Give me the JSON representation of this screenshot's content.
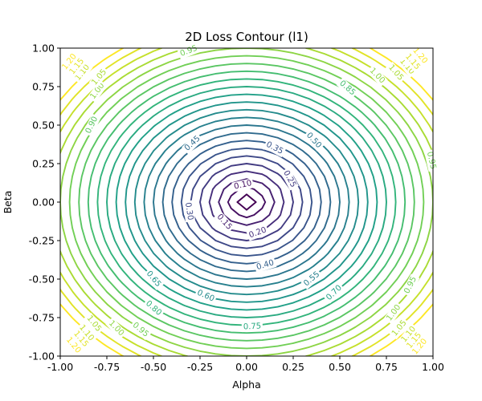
{
  "chart_data": {
    "type": "contour",
    "title": "2D Loss Contour (l1)",
    "xlabel": "Alpha",
    "ylabel": "Beta",
    "xlim": [
      -1.0,
      1.0
    ],
    "ylim": [
      -1.0,
      1.0
    ],
    "x_ticks": [
      "-1.00",
      "-0.75",
      "-0.50",
      "-0.25",
      "0.00",
      "0.25",
      "0.50",
      "0.75",
      "1.00"
    ],
    "y_ticks": [
      "-1.00",
      "-0.75",
      "-0.50",
      "-0.25",
      "0.00",
      "0.25",
      "0.50",
      "0.75",
      "1.00"
    ],
    "levels": [
      0.05,
      0.1,
      0.15,
      0.2,
      0.25,
      0.3,
      0.35,
      0.4,
      0.45,
      0.5,
      0.55,
      0.6,
      0.65,
      0.7,
      0.75,
      0.8,
      0.85,
      0.9,
      0.95,
      1.0,
      1.05,
      1.1,
      1.15,
      1.2
    ],
    "level_range": [
      0.05,
      1.2
    ],
    "colormap": "viridis",
    "colormap_stops": [
      "#440154",
      "#482878",
      "#3e4989",
      "#31688e",
      "#26828e",
      "#1f9e89",
      "#35b779",
      "#6ece58",
      "#b5de2b",
      "#fde725"
    ],
    "grid": false,
    "contour_labels": [
      {
        "text": "0.10",
        "x": -0.02,
        "y": 0.11
      },
      {
        "text": "0.15",
        "x": -0.12,
        "y": -0.13
      },
      {
        "text": "0.20",
        "x": 0.06,
        "y": -0.2
      },
      {
        "text": "0.25",
        "x": 0.23,
        "y": 0.15
      },
      {
        "text": "0.30",
        "x": -0.31,
        "y": -0.06
      },
      {
        "text": "0.35",
        "x": 0.15,
        "y": 0.35
      },
      {
        "text": "0.40",
        "x": 0.1,
        "y": -0.41
      },
      {
        "text": "0.45",
        "x": -0.29,
        "y": 0.38
      },
      {
        "text": "0.50",
        "x": 0.36,
        "y": 0.4
      },
      {
        "text": "0.55",
        "x": 0.35,
        "y": -0.5
      },
      {
        "text": "0.60",
        "x": -0.22,
        "y": -0.61
      },
      {
        "text": "0.65",
        "x": -0.5,
        "y": -0.5
      },
      {
        "text": "0.70",
        "x": 0.47,
        "y": -0.59
      },
      {
        "text": "0.75",
        "x": 0.03,
        "y": -0.81
      },
      {
        "text": "0.80",
        "x": -0.5,
        "y": -0.69
      },
      {
        "text": "0.85",
        "x": 0.54,
        "y": 0.74
      },
      {
        "text": "0.90",
        "x": -0.83,
        "y": 0.5
      },
      {
        "text": "0.95",
        "x": -0.31,
        "y": 0.98
      },
      {
        "text": "0.95",
        "x": 0.88,
        "y": -0.54
      },
      {
        "text": "0.95",
        "x": -0.57,
        "y": -0.83
      },
      {
        "text": "0.95",
        "x": 0.99,
        "y": 0.27
      },
      {
        "text": "1.00",
        "x": -0.8,
        "y": 0.72
      },
      {
        "text": "1.00",
        "x": 0.7,
        "y": 0.82
      },
      {
        "text": "1.00",
        "x": -0.7,
        "y": -0.82
      },
      {
        "text": "1.00",
        "x": 0.79,
        "y": -0.72
      },
      {
        "text": "1.05",
        "x": -0.79,
        "y": 0.81
      },
      {
        "text": "1.05",
        "x": 0.8,
        "y": 0.84
      },
      {
        "text": "1.05",
        "x": -0.82,
        "y": -0.79
      },
      {
        "text": "1.05",
        "x": 0.82,
        "y": -0.82
      },
      {
        "text": "1.10",
        "x": -0.88,
        "y": 0.84
      },
      {
        "text": "1.10",
        "x": 0.86,
        "y": 0.88
      },
      {
        "text": "1.10",
        "x": -0.86,
        "y": -0.85
      },
      {
        "text": "1.10",
        "x": 0.87,
        "y": -0.86
      },
      {
        "text": "1.15",
        "x": -0.91,
        "y": 0.88
      },
      {
        "text": "1.15",
        "x": 0.89,
        "y": 0.91
      },
      {
        "text": "1.15",
        "x": -0.89,
        "y": -0.89
      },
      {
        "text": "1.15",
        "x": 0.9,
        "y": -0.9
      },
      {
        "text": "1.20",
        "x": -0.95,
        "y": 0.91
      },
      {
        "text": "1.20",
        "x": 0.93,
        "y": 0.95
      },
      {
        "text": "1.20",
        "x": -0.93,
        "y": -0.93
      },
      {
        "text": "1.20",
        "x": 0.93,
        "y": -0.94
      }
    ]
  }
}
